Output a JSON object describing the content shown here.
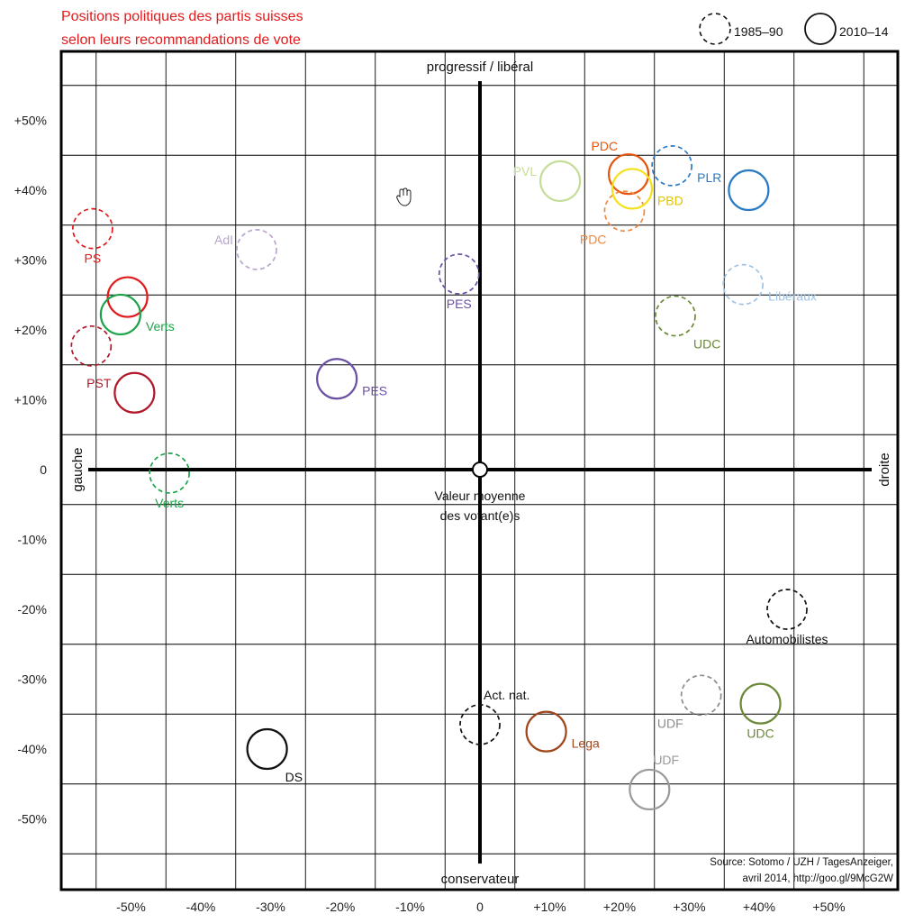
{
  "chart_data": {
    "type": "scatter",
    "title_lines": [
      "Positions politiques des partis suisses",
      "selon leurs recommandations de vote"
    ],
    "xlim": [
      -60,
      60
    ],
    "ylim": [
      -60,
      60
    ],
    "x_ticks": [
      {
        "value": -50,
        "label": "-50%"
      },
      {
        "value": -40,
        "label": "-40%"
      },
      {
        "value": -30,
        "label": "-30%"
      },
      {
        "value": -20,
        "label": "-20%"
      },
      {
        "value": -10,
        "label": "-10%"
      },
      {
        "value": 0,
        "label": "0"
      },
      {
        "value": 10,
        "label": "+10%"
      },
      {
        "value": 20,
        "label": "+20%"
      },
      {
        "value": 30,
        "label": "+30%"
      },
      {
        "value": 40,
        "label": "+40%"
      },
      {
        "value": 50,
        "label": "+50%"
      }
    ],
    "y_ticks": [
      {
        "value": 50,
        "label": "+50%"
      },
      {
        "value": 40,
        "label": "+40%"
      },
      {
        "value": 30,
        "label": "+30%"
      },
      {
        "value": 20,
        "label": "+20%"
      },
      {
        "value": 10,
        "label": "+10%"
      },
      {
        "value": 0,
        "label": "0"
      },
      {
        "value": -10,
        "label": "-10%"
      },
      {
        "value": -20,
        "label": "-20%"
      },
      {
        "value": -30,
        "label": "-30%"
      },
      {
        "value": -40,
        "label": "-40%"
      },
      {
        "value": -50,
        "label": "-50%"
      }
    ],
    "grid": true,
    "axis_labels": {
      "top": "progressif / libéral",
      "bottom": "conservateur",
      "left": "gauche",
      "right": "droite"
    },
    "center_label_lines": [
      "Valeur moyenne",
      "des votant(e)s"
    ],
    "legend": {
      "position": "top-right",
      "entries": [
        {
          "label": "1985–90",
          "style": "dashed"
        },
        {
          "label": "2010–14",
          "style": "solid"
        }
      ]
    },
    "source_lines": [
      "Source: Sotomo / UZH / TagesAnzeiger,",
      "avril 2014, http://goo.gl/9McG2W"
    ],
    "points": [
      {
        "party": "PS",
        "period": "1985–90",
        "x": -55.5,
        "y": 34.5,
        "color": "#e31a1c",
        "label": "PS",
        "label_side": "below"
      },
      {
        "party": "PS",
        "period": "2010–14",
        "x": -50.5,
        "y": 24.7,
        "color": "#e31a1c",
        "label": "",
        "label_side": "none"
      },
      {
        "party": "Verts",
        "period": "2010–14",
        "x": -51.5,
        "y": 22.2,
        "color": "#1ea34a",
        "label": "Verts",
        "label_side": "right"
      },
      {
        "party": "PST",
        "period": "1985–90",
        "x": -55.7,
        "y": 17.7,
        "color": "#b2182b",
        "label": "",
        "label_side": "none"
      },
      {
        "party": "PST",
        "period": "2010–14",
        "x": -49.5,
        "y": 11.0,
        "color": "#b2182b",
        "label": "PST",
        "label_side": "left"
      },
      {
        "party": "Verts",
        "period": "1985–90",
        "x": -44.5,
        "y": -0.5,
        "color": "#1ea34a",
        "label": "Verts",
        "label_side": "below"
      },
      {
        "party": "AdI",
        "period": "1985–90",
        "x": -32.0,
        "y": 31.5,
        "color": "#b9a4cf",
        "label": "AdI",
        "label_side": "left"
      },
      {
        "party": "PES",
        "period": "1985–90",
        "x": -3.0,
        "y": 28.0,
        "color": "#6a51a3",
        "label": "PES",
        "label_side": "below"
      },
      {
        "party": "PES",
        "period": "2010–14",
        "x": -20.5,
        "y": 13.0,
        "color": "#6a51a3",
        "label": "PES",
        "label_side": "right"
      },
      {
        "party": "PVL",
        "period": "2010–14",
        "x": 11.5,
        "y": 41.3,
        "color": "#c5dd97",
        "label": "PVL",
        "label_side": "left"
      },
      {
        "party": "PDC",
        "period": "2010–14",
        "x": 21.3,
        "y": 42.3,
        "color": "#e6550d",
        "label": "PDC",
        "label_side": "above-left"
      },
      {
        "party": "PDC",
        "period": "1985–90",
        "x": 20.7,
        "y": 37.0,
        "color": "#f0883e",
        "label": "PDC",
        "label_side": "below-left"
      },
      {
        "party": "PBD",
        "period": "2010–14",
        "x": 21.8,
        "y": 40.2,
        "color": "#f5e11b",
        "label": "PBD",
        "label_side": "right"
      },
      {
        "party": "PLR",
        "period": "1985–90",
        "x": 27.5,
        "y": 43.5,
        "color": "#2b7bc4",
        "label": "PLR",
        "label_side": "right"
      },
      {
        "party": "PLR",
        "period": "2010–14",
        "x": 38.5,
        "y": 40.0,
        "color": "#2b7bc4",
        "label": "",
        "label_side": "none"
      },
      {
        "party": "Libéraux",
        "period": "1985–90",
        "x": 37.7,
        "y": 26.5,
        "color": "#9ec3e6",
        "label": "Libéraux",
        "label_side": "right"
      },
      {
        "party": "UDC",
        "period": "1985–90",
        "x": 28.0,
        "y": 22.0,
        "color": "#6a8a38",
        "label": "UDC",
        "label_side": "below-right"
      },
      {
        "party": "Automobilistes",
        "period": "1985–90",
        "x": 44.0,
        "y": -20.0,
        "color": "#111111",
        "label": "Automobilistes",
        "label_side": "below"
      },
      {
        "party": "UDF",
        "period": "1985–90",
        "x": 31.7,
        "y": -32.3,
        "color": "#8c8c8c",
        "label": "UDF",
        "label_side": "below-left"
      },
      {
        "party": "UDC",
        "period": "2010–14",
        "x": 40.2,
        "y": -33.5,
        "color": "#6a8a38",
        "label": "UDC",
        "label_side": "below"
      },
      {
        "party": "UDF",
        "period": "2010–14",
        "x": 24.3,
        "y": -45.8,
        "color": "#9a9a9a",
        "label": "UDF",
        "label_side": "above-right"
      },
      {
        "party": "Act. nat.",
        "period": "1985–90",
        "x": 0.0,
        "y": -36.5,
        "color": "#111111",
        "label": "Act. nat.",
        "label_side": "above-right"
      },
      {
        "party": "Lega",
        "period": "2010–14",
        "x": 9.5,
        "y": -37.5,
        "color": "#a0461b",
        "label": "Lega",
        "label_side": "right"
      },
      {
        "party": "DS",
        "period": "2010–14",
        "x": -30.5,
        "y": -40.0,
        "color": "#111111",
        "label": "DS",
        "label_side": "below-right"
      }
    ],
    "annotations": [
      {
        "text": "",
        "note": "hand cursor icon near upper-left plot area",
        "icon": "hand-cursor-icon"
      }
    ]
  }
}
